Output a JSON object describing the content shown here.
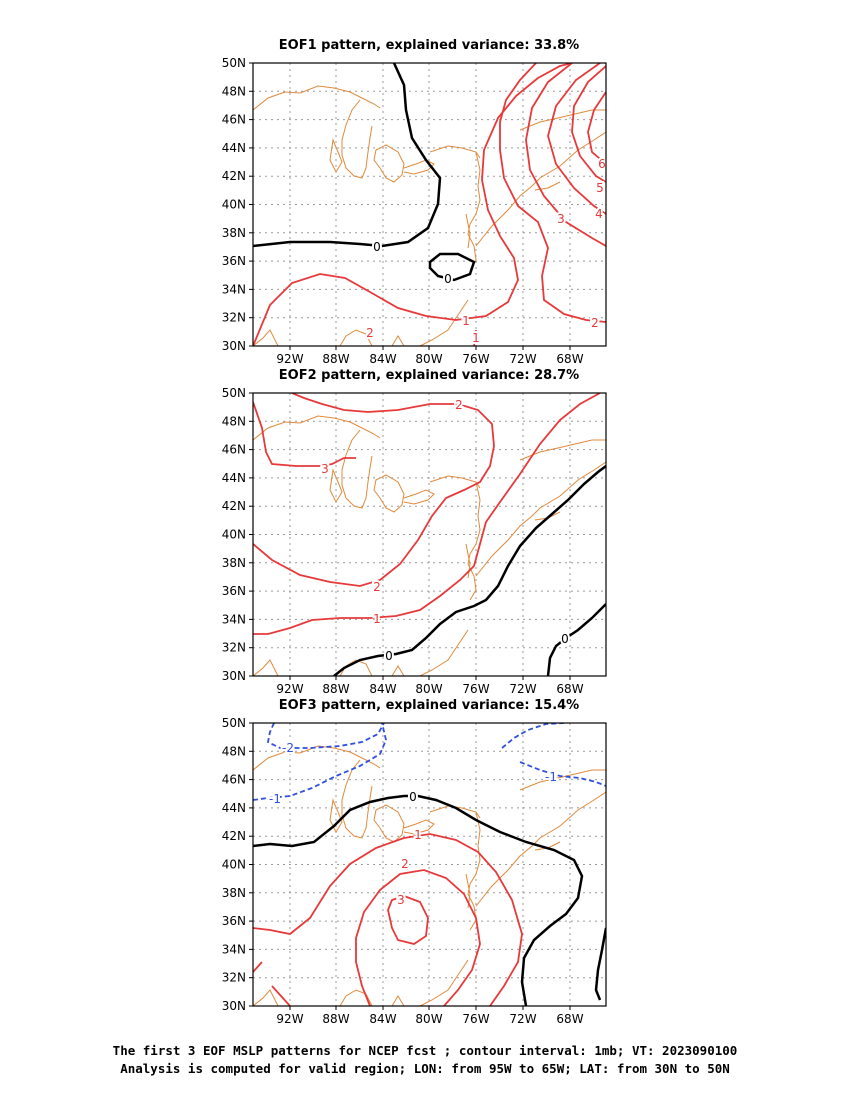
{
  "panels": [
    {
      "title": "EOF1 pattern, explained variance: 33.8%",
      "variance": 33.8
    },
    {
      "title": "EOF2 pattern, explained variance: 28.7%",
      "variance": 28.7
    },
    {
      "title": "EOF3 pattern, explained variance: 15.4%",
      "variance": 15.4
    }
  ],
  "axes": {
    "lat_ticks": [
      "50N",
      "48N",
      "46N",
      "44N",
      "42N",
      "40N",
      "38N",
      "36N",
      "34N",
      "32N",
      "30N"
    ],
    "lon_ticks": [
      "92W",
      "88W",
      "84W",
      "80W",
      "76W",
      "72W",
      "68W"
    ],
    "lon_range": [
      "95W",
      "65W"
    ],
    "lat_range": [
      "30N",
      "50N"
    ]
  },
  "contour_labels": {
    "p1": [
      "0",
      "0",
      "1",
      "1",
      "2",
      "2",
      "3",
      "4",
      "5",
      "6"
    ],
    "p2": [
      "2",
      "3",
      "2",
      "1",
      "0",
      "0"
    ],
    "p3": [
      "-2",
      "-1",
      "-1",
      "0",
      "1",
      "2",
      "3"
    ]
  },
  "caption": {
    "line1": "The first 3 EOF MSLP patterns for NCEP fcst ; contour interval: 1mb; VT: 2023090100",
    "line2": "Analysis is computed for valid region; LON: from 95W to 65W; LAT: from 30N to 50N"
  },
  "colors": {
    "positive": "#e8393a",
    "negative": "#3050e0",
    "zero": "#000000",
    "coast": "#e08a3c",
    "grid": "#9a9a9a"
  }
}
